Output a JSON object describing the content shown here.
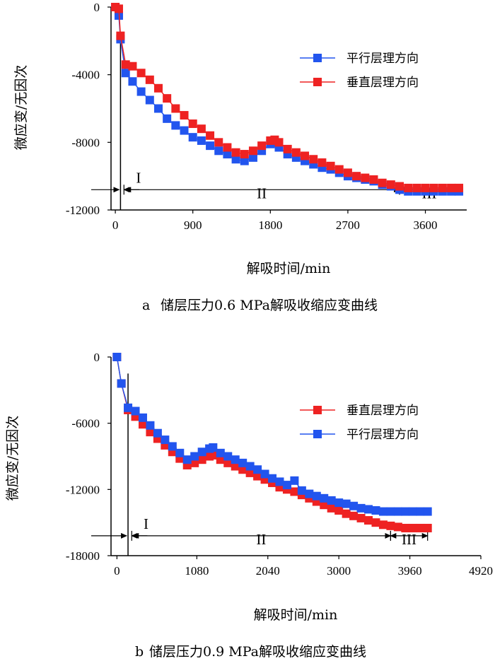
{
  "chart_data": [
    {
      "type": "line",
      "panel": "a",
      "caption_prefix": "a",
      "caption": "储层压力0.6 MPa解吸收缩应变曲线",
      "xlabel": "解吸时间/min",
      "ylabel": "微应变/无因次",
      "xlim": [
        -50,
        4080
      ],
      "ylim": [
        -12000,
        0
      ],
      "x_ticks": [
        0,
        900,
        1800,
        2700,
        3600
      ],
      "x_tick_labels": [
        "0",
        "900",
        "1800",
        "2700",
        "3600"
      ],
      "y_ticks": [
        0,
        -4000,
        -8000,
        -12000
      ],
      "y_tick_labels": [
        "0",
        "-4000",
        "-8000",
        "-12000"
      ],
      "legend_position": "top-right",
      "stages": [
        {
          "label": "I",
          "x_start": 60,
          "x_end": 100
        },
        {
          "label": "II",
          "x_start": 100,
          "x_end": 3300
        },
        {
          "label": "III",
          "x_start": 3300,
          "x_end": 3990
        }
      ],
      "stage_y": -10800,
      "stage_divider_x": 60,
      "series": [
        {
          "name": "平行层理方向",
          "color": "#2255ee",
          "x": [
            0,
            40,
            60,
            120,
            200,
            300,
            400,
            500,
            600,
            700,
            800,
            900,
            1000,
            1100,
            1200,
            1300,
            1400,
            1500,
            1600,
            1700,
            1800,
            1850,
            1900,
            2000,
            2100,
            2200,
            2300,
            2400,
            2500,
            2600,
            2700,
            2800,
            2900,
            3000,
            3100,
            3200,
            3300,
            3400,
            3500,
            3600,
            3700,
            3800,
            3900,
            3990
          ],
          "y": [
            0,
            -500,
            -1900,
            -3900,
            -4400,
            -5000,
            -5500,
            -6000,
            -6600,
            -7000,
            -7300,
            -7700,
            -7900,
            -8200,
            -8500,
            -8700,
            -9000,
            -9100,
            -8900,
            -8500,
            -8100,
            -8050,
            -8300,
            -8700,
            -8900,
            -9100,
            -9300,
            -9500,
            -9600,
            -9800,
            -10000,
            -10100,
            -10200,
            -10300,
            -10500,
            -10600,
            -10800,
            -10900,
            -10900,
            -10900,
            -10900,
            -10900,
            -10900,
            -10900
          ]
        },
        {
          "name": "垂直层理方向",
          "color": "#ee2222",
          "x": [
            0,
            40,
            60,
            120,
            200,
            300,
            400,
            500,
            600,
            700,
            800,
            900,
            1000,
            1100,
            1200,
            1300,
            1400,
            1500,
            1600,
            1700,
            1800,
            1850,
            1900,
            2000,
            2100,
            2200,
            2300,
            2400,
            2500,
            2600,
            2700,
            2800,
            2900,
            3000,
            3100,
            3200,
            3300,
            3400,
            3500,
            3600,
            3700,
            3800,
            3900,
            3990
          ],
          "y": [
            0,
            -100,
            -1700,
            -3400,
            -3500,
            -3900,
            -4300,
            -4800,
            -5400,
            -6000,
            -6400,
            -6900,
            -7200,
            -7600,
            -8000,
            -8300,
            -8600,
            -8700,
            -8500,
            -8200,
            -7900,
            -7850,
            -8000,
            -8400,
            -8600,
            -8800,
            -9000,
            -9200,
            -9400,
            -9600,
            -9800,
            -10000,
            -10100,
            -10200,
            -10400,
            -10500,
            -10600,
            -10700,
            -10700,
            -10700,
            -10700,
            -10700,
            -10700,
            -10700
          ]
        }
      ]
    },
    {
      "type": "line",
      "panel": "b",
      "caption_prefix": "b",
      "caption": "储层压力0.9 MPa解吸收缩应变曲线",
      "xlabel": "解吸时间/min",
      "ylabel": "微应变/无因次",
      "xlim": [
        -80,
        4920
      ],
      "ylim": [
        -18000,
        0
      ],
      "x_ticks": [
        0,
        1080,
        2040,
        3000,
        3960,
        4920
      ],
      "x_tick_labels": [
        "0",
        "1080",
        "2040",
        "3000",
        "3960",
        "4920"
      ],
      "y_ticks": [
        0,
        -6000,
        -12000,
        -18000
      ],
      "y_tick_labels": [
        "0",
        "-6000",
        "-12000",
        "-18000"
      ],
      "legend_position": "top-right",
      "stages": [
        {
          "label": "I",
          "x_start": 150,
          "x_end": 200
        },
        {
          "label": "II",
          "x_start": 200,
          "x_end": 3700
        },
        {
          "label": "III",
          "x_start": 3700,
          "x_end": 4200
        }
      ],
      "stage_y": -16200,
      "stage_divider_x": 150,
      "series": [
        {
          "name": "垂直层理方向",
          "color": "#ee2222",
          "x": [
            0,
            60,
            150,
            250,
            350,
            450,
            550,
            650,
            750,
            850,
            950,
            1050,
            1150,
            1250,
            1300,
            1400,
            1500,
            1600,
            1700,
            1800,
            1900,
            2000,
            2100,
            2200,
            2300,
            2400,
            2500,
            2600,
            2700,
            2800,
            2900,
            3000,
            3100,
            3200,
            3300,
            3400,
            3500,
            3600,
            3700,
            3800,
            3900,
            4000,
            4100,
            4200
          ],
          "y": [
            0,
            -2400,
            -4800,
            -5400,
            -6100,
            -6800,
            -7400,
            -8000,
            -8600,
            -9200,
            -9800,
            -9600,
            -9300,
            -9000,
            -8900,
            -9300,
            -9600,
            -9900,
            -10200,
            -10500,
            -10800,
            -11100,
            -11400,
            -11800,
            -12000,
            -12200,
            -12500,
            -12800,
            -13100,
            -13400,
            -13700,
            -13900,
            -14200,
            -14400,
            -14600,
            -14800,
            -15000,
            -15200,
            -15300,
            -15400,
            -15500,
            -15500,
            -15500,
            -15500
          ]
        },
        {
          "name": "平行层理方向",
          "color": "#2255ee",
          "x": [
            0,
            60,
            150,
            250,
            350,
            450,
            550,
            650,
            750,
            850,
            950,
            1050,
            1150,
            1250,
            1300,
            1400,
            1500,
            1600,
            1700,
            1800,
            1900,
            2000,
            2100,
            2200,
            2300,
            2400,
            2500,
            2600,
            2700,
            2800,
            2900,
            3000,
            3100,
            3200,
            3300,
            3400,
            3500,
            3600,
            3700,
            3800,
            3900,
            4000,
            4100,
            4200
          ],
          "y": [
            0,
            -2400,
            -4600,
            -4900,
            -5500,
            -6200,
            -6900,
            -7500,
            -8100,
            -8700,
            -9300,
            -9000,
            -8600,
            -8300,
            -8200,
            -8700,
            -9000,
            -9300,
            -9600,
            -9900,
            -10200,
            -10600,
            -11000,
            -11300,
            -11600,
            -11200,
            -12100,
            -12400,
            -12600,
            -12800,
            -13000,
            -13200,
            -13300,
            -13500,
            -13700,
            -13800,
            -13900,
            -14000,
            -14000,
            -14000,
            -14000,
            -14000,
            -14000,
            -14000
          ]
        }
      ]
    }
  ]
}
